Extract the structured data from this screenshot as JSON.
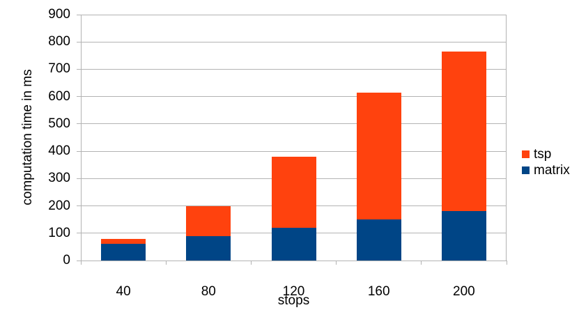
{
  "chart_data": {
    "type": "bar",
    "stacked": true,
    "title": "",
    "xlabel": "stops",
    "ylabel": "computation time in ms",
    "categories": [
      "40",
      "80",
      "120",
      "160",
      "200"
    ],
    "series": [
      {
        "name": "matrix",
        "color": "#004586",
        "values": [
          60,
          90,
          120,
          150,
          180
        ]
      },
      {
        "name": "tsp",
        "color": "#FF420E",
        "values": [
          18,
          110,
          260,
          465,
          585
        ]
      }
    ],
    "ylim": [
      0,
      900
    ],
    "ytick_step": 100,
    "grid": true,
    "legend_position": "right",
    "legend_order": [
      "tsp",
      "matrix"
    ]
  },
  "colors": {
    "background": "#ffffff",
    "grid": "#b3b3b3",
    "axis": "#b3b3b3",
    "text": "#000000"
  }
}
